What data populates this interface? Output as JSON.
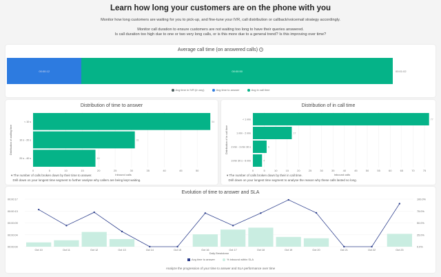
{
  "header": {
    "title": "Learn how long your customers are on the phone with you",
    "line1": "Monitor how long customers are waiting for you to pick-up, and fine-tune your IVR, call distribution or callback/voicemail strategy accordingly.",
    "line2": "Monitor call duration to ensure customers are not waiting too long to have their queries answered.",
    "line3": "Is call duration too high due to one or two very long calls, or is this more due to a general trend? Is this improving over time?"
  },
  "avg_call": {
    "title": "Average call time (on answered calls)",
    "info_icon": "info-icon",
    "segments": [
      {
        "name": "Avg time to answer",
        "label": "00:00:12",
        "seconds": 12,
        "color": "#2d7be0"
      },
      {
        "name": "Avg in call time",
        "label": "00:00:50",
        "seconds": 50,
        "color": "#05b388"
      }
    ],
    "total_label": "00:01:02",
    "legend": [
      {
        "label": "Avg time in IVR (in any)",
        "color": "#4a5a5a"
      },
      {
        "label": "Avg time to answer",
        "color": "#2d7be0"
      },
      {
        "label": "Avg in call time",
        "color": "#05b388"
      }
    ]
  },
  "chart_data": [
    {
      "type": "bar",
      "title": "Distribution of time to answer",
      "ylabel": "Distribution of waiting time",
      "xlabel": "Inbound calls",
      "categories": [
        "< 10 s",
        "10 s - 20 s",
        "20 s - 40 s"
      ],
      "values": [
        54,
        31,
        19
      ],
      "xlim": [
        0,
        55
      ],
      "ticks": [
        0,
        5,
        10,
        15,
        20,
        25,
        30,
        35,
        40,
        45,
        50
      ],
      "color": "#05b388"
    },
    {
      "type": "bar",
      "title": "Distribution of in call time",
      "ylabel": "Distribution of in call time",
      "xlabel": "Inbound calls",
      "categories": [
        "< 1 min",
        "1 min - 2 min",
        "2 min - 3 min 30 s",
        "3 min 30 s - 6 min"
      ],
      "values": [
        77,
        17,
        6,
        4
      ],
      "xlim": [
        0,
        78
      ],
      "ticks": [
        0,
        5,
        10,
        15,
        20,
        25,
        30,
        35,
        40,
        45,
        50,
        55,
        60,
        65,
        70,
        75
      ],
      "color": "#05b388"
    },
    {
      "type": "line+bar",
      "title": "Evolution of time to answer and SLA",
      "xlabel": "Daily Breakdown",
      "categories": [
        "Oct 10",
        "Oct 11",
        "Oct 12",
        "Oct 13",
        "Oct 14",
        "Oct 15",
        "Oct 16",
        "Oct 17",
        "Oct 18",
        "Oct 19",
        "Oct 20",
        "Oct 21",
        "Oct 22",
        "Oct 23"
      ],
      "series": [
        {
          "name": "Avg time to answer",
          "type": "line",
          "axis": "left",
          "unit": "seconds",
          "values": [
            13.7,
            7.8,
            12.7,
            5.6,
            0,
            0,
            12.4,
            7.8,
            12.4,
            17.3,
            12.5,
            0,
            0,
            15.9
          ],
          "color": "#2c3e8c"
        },
        {
          "name": "% inbound within SLA",
          "type": "bar",
          "axis": "right",
          "unit": "percent",
          "values": [
            9,
            13.5,
            31,
            16,
            0,
            0,
            26,
            36,
            40,
            20.5,
            17.7,
            0,
            0,
            27
          ],
          "color": "#c9ede1"
        }
      ],
      "left_ticks": [
        "00:00:00",
        "00:00:04",
        "00:00:09",
        "00:00:13",
        "00:00:17"
      ],
      "left_max": 17.3,
      "right_ticks": [
        "0.0%",
        "25.0%",
        "50.0%",
        "75.0%",
        "100.0%"
      ]
    }
  ],
  "notes": {
    "answer": [
      "The number of calls broken down by their time to answer.",
      "Drill down on your longest time segment to further analyse why callers are being kept waiting."
    ],
    "incall": [
      "The number of calls broken down by their in call time.",
      "Drill down on your longest time segment to analyse the reason why these calls lasted so long."
    ],
    "evolution": "Analyze the progression of your time to answer and SLA performance over time"
  }
}
